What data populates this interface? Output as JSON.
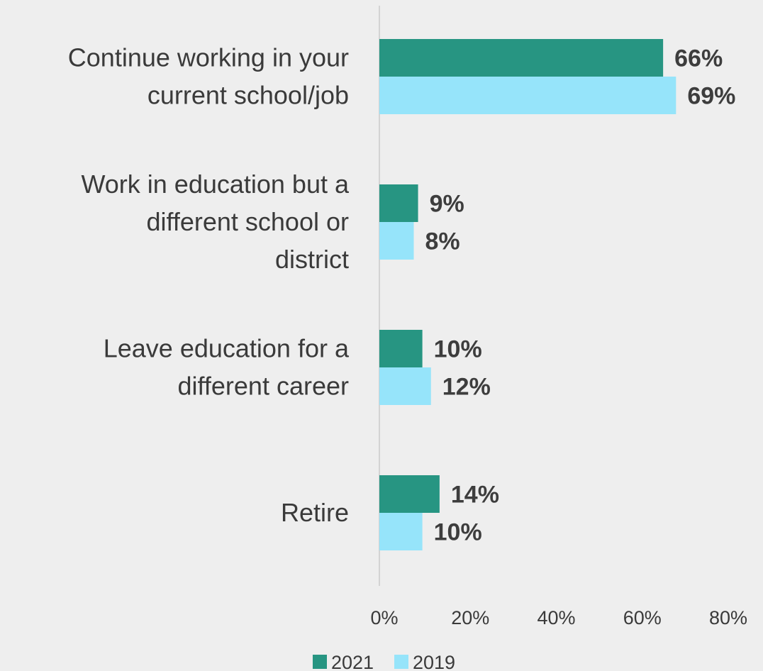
{
  "chart_data": {
    "type": "bar",
    "orientation": "horizontal",
    "title": "",
    "xlabel": "",
    "ylabel": "",
    "categories": [
      [
        "Continue working in your",
        "current school/job"
      ],
      [
        "Work in education but a",
        "different school or",
        "district"
      ],
      [
        "Leave education for a",
        "different career"
      ],
      [
        "Retire"
      ]
    ],
    "series": [
      {
        "name": "2021",
        "color": "#279582",
        "values": [
          66,
          9,
          10,
          14
        ],
        "labels": [
          "66%",
          "9%",
          "10%",
          "14%"
        ]
      },
      {
        "name": "2019",
        "color": "#96e4fa",
        "values": [
          69,
          8,
          12,
          10
        ],
        "labels": [
          "69%",
          "8%",
          "12%",
          "10%"
        ]
      }
    ],
    "xlim": [
      0,
      80
    ],
    "xticks": [
      "0%",
      "20%",
      "40%",
      "60%",
      "80%"
    ],
    "grid": false,
    "legend_position": "bottom-center"
  }
}
